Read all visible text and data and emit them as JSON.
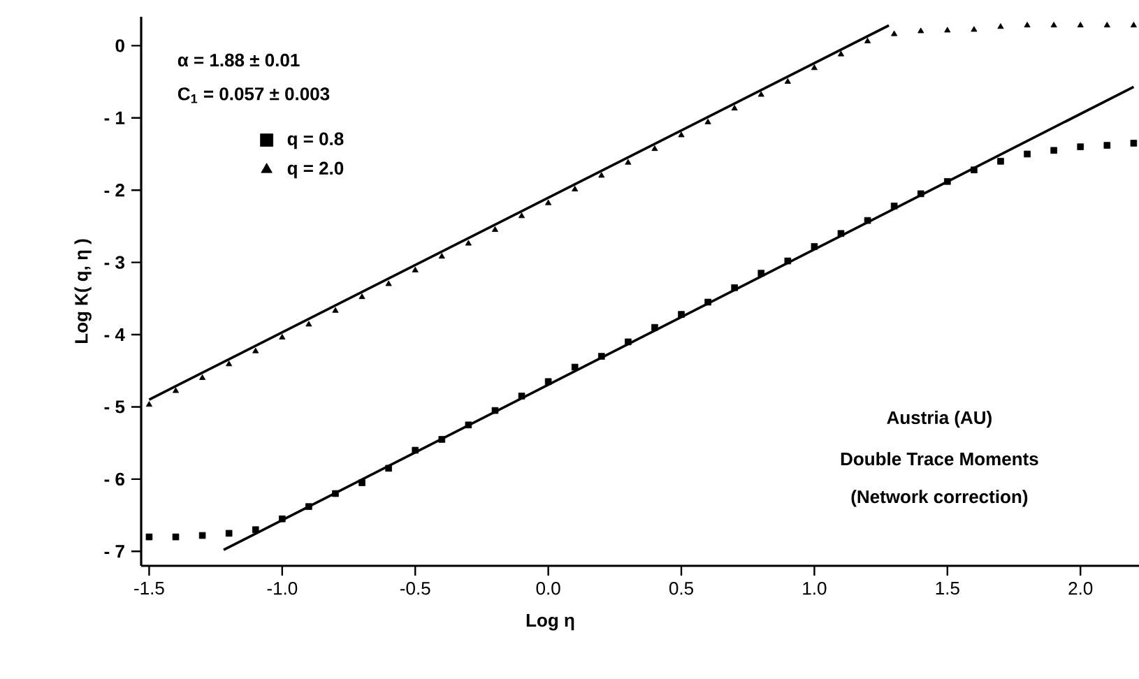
{
  "chart_data": {
    "type": "scatter",
    "xlabel": "Log η",
    "ylabel": "Log K( q, η )",
    "annotations": [
      "α  =  1.88  ±  0.01",
      "C$_{1}$  =  0.057  ±  0.003",
      "Austria  (AU)",
      "Double Trace Moments",
      "(Network  correction)"
    ],
    "xlim": [
      -1.53,
      2.22
    ],
    "ylim": [
      -7.2,
      0.4
    ],
    "xticks": [
      {
        "value": -1.5,
        "label": "-1.5"
      },
      {
        "value": -1.0,
        "label": "-1.0"
      },
      {
        "value": -0.5,
        "label": "-0.5"
      },
      {
        "value": 0.0,
        "label": "0.0"
      },
      {
        "value": 0.5,
        "label": "0.5"
      },
      {
        "value": 1.0,
        "label": "1.0"
      },
      {
        "value": 1.5,
        "label": "1.5"
      },
      {
        "value": 2.0,
        "label": "2.0"
      }
    ],
    "yticks": [
      {
        "value": 0,
        "label": "0"
      },
      {
        "value": -1,
        "label": "- 1"
      },
      {
        "value": -2,
        "label": "- 2"
      },
      {
        "value": -3,
        "label": "- 3"
      },
      {
        "value": -4,
        "label": "- 4"
      },
      {
        "value": -5,
        "label": "- 5"
      },
      {
        "value": -6,
        "label": "- 6"
      },
      {
        "value": -7,
        "label": "- 7"
      }
    ],
    "grid": false,
    "legend": "top left",
    "x": [
      -1.5,
      -1.4,
      -1.3,
      -1.2,
      -1.1,
      -1.0,
      -0.9,
      -0.8,
      -0.7,
      -0.6,
      -0.5,
      -0.4,
      -0.3,
      -0.2,
      -0.1,
      0.0,
      0.1,
      0.2,
      0.3,
      0.4,
      0.5,
      0.6,
      0.7,
      0.8,
      0.9,
      1.0,
      1.1,
      1.2,
      1.3,
      1.4,
      1.5,
      1.6,
      1.7,
      1.8,
      1.9,
      2.0,
      2.1,
      2.2
    ],
    "series": [
      {
        "name": "q  =  0.8",
        "color": "#000000",
        "marker": "square",
        "values": [
          -6.8,
          -6.8,
          -6.78,
          -6.75,
          -6.7,
          -6.55,
          -6.38,
          -6.2,
          -6.05,
          -5.85,
          -5.6,
          -5.45,
          -5.25,
          -5.05,
          -4.85,
          -4.65,
          -4.45,
          -4.3,
          -4.1,
          -3.9,
          -3.72,
          -3.55,
          -3.35,
          -3.15,
          -2.98,
          -2.78,
          -2.6,
          -2.42,
          -2.22,
          -2.05,
          -1.88,
          -1.72,
          -1.6,
          -1.5,
          -1.45,
          -1.4,
          -1.38,
          -1.35
        ]
      },
      {
        "name": "q  =  2.0",
        "color": "#000000",
        "marker": "triangle",
        "values": [
          -4.97,
          -4.78,
          -4.6,
          -4.41,
          -4.23,
          -4.04,
          -3.86,
          -3.67,
          -3.48,
          -3.3,
          -3.11,
          -2.92,
          -2.74,
          -2.55,
          -2.36,
          -2.18,
          -1.99,
          -1.8,
          -1.62,
          -1.43,
          -1.24,
          -1.06,
          -0.87,
          -0.68,
          -0.5,
          -0.31,
          -0.12,
          0.06,
          0.16,
          0.2,
          0.21,
          0.22,
          0.26,
          0.28,
          0.28,
          0.28,
          0.28,
          0.28
        ]
      },
      {
        "type": "line",
        "color": "#000000",
        "marker": "none",
        "line_style": "solid",
        "x": [
          -1.22,
          2.2
        ],
        "values": [
          -6.98,
          -0.57
        ]
      },
      {
        "type": "line",
        "color": "#000000",
        "marker": "none",
        "line_style": "solid",
        "x": [
          -1.5,
          1.28
        ],
        "values": [
          -4.9,
          0.28
        ]
      }
    ]
  }
}
